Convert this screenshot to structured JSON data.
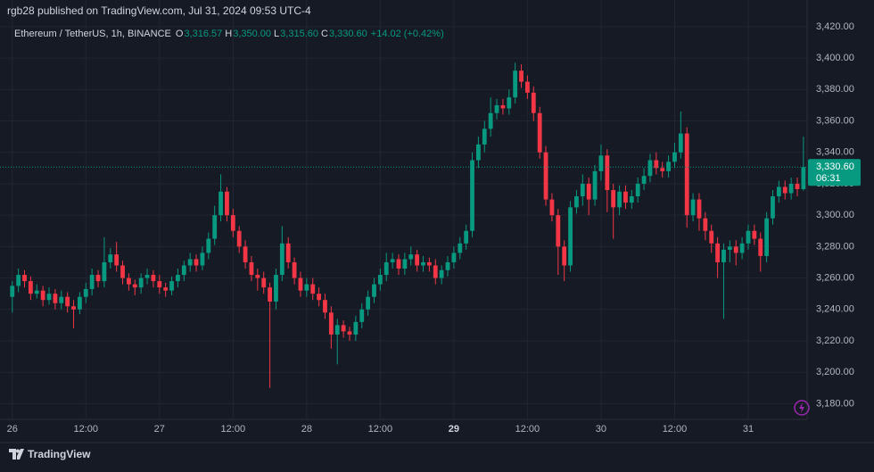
{
  "header": "rgb28 published on TradingView.com, Jul 31, 2024 09:53 UTC-4",
  "brand": "TradingView",
  "chart_data": {
    "type": "candlestick",
    "legend": {
      "symbol": "Ethereum / TetherUS, 1h, BINANCE",
      "items": [
        {
          "key": "O",
          "value": "3,316.57"
        },
        {
          "key": "H",
          "value": "3,350.00"
        },
        {
          "key": "L",
          "value": "3,315.60"
        },
        {
          "key": "C",
          "value": "3,330.60"
        }
      ],
      "change": "+14.02 (+0.42%)"
    },
    "up_color": "#089981",
    "down_color": "#f23645",
    "open": [
      3248,
      3255,
      3262,
      3258,
      3250,
      3252,
      3246,
      3250,
      3244,
      3248,
      3242,
      3240,
      3248,
      3253,
      3262,
      3258,
      3270,
      3275,
      3268,
      3260,
      3256,
      3254,
      3260,
      3262,
      3258,
      3254,
      3252,
      3258,
      3262,
      3268,
      3272,
      3268,
      3276,
      3285,
      3300,
      3315,
      3300,
      3290,
      3280,
      3270,
      3262,
      3260,
      3254,
      3245,
      3262,
      3282,
      3270,
      3260,
      3252,
      3256,
      3250,
      3246,
      3238,
      3224,
      3230,
      3226,
      3224,
      3232,
      3240,
      3248,
      3256,
      3262,
      3270,
      3272,
      3266,
      3272,
      3275,
      3268,
      3270,
      3268,
      3260,
      3265,
      3270,
      3276,
      3282,
      3290,
      3335,
      3345,
      3355,
      3365,
      3370,
      3368,
      3375,
      3392,
      3385,
      3378,
      3365,
      3340,
      3310,
      3300,
      3280,
      3268,
      3305,
      3312,
      3320,
      3310,
      3328,
      3338,
      3316,
      3305,
      3315,
      3308,
      3312,
      3320,
      3325,
      3335,
      3330,
      3328,
      3334,
      3340,
      3352,
      3300,
      3310,
      3298,
      3290,
      3282,
      3270,
      3278,
      3280,
      3276,
      3282,
      3290,
      3285,
      3274,
      3298,
      3312,
      3318,
      3314,
      3320,
      3316.57
    ],
    "high": [
      3258,
      3266,
      3265,
      3261,
      3256,
      3255,
      3254,
      3253,
      3252,
      3251,
      3246,
      3251,
      3257,
      3266,
      3265,
      3286,
      3279,
      3283,
      3271,
      3263,
      3259,
      3263,
      3266,
      3265,
      3262,
      3257,
      3261,
      3266,
      3271,
      3276,
      3275,
      3280,
      3289,
      3306,
      3326,
      3318,
      3304,
      3293,
      3284,
      3274,
      3266,
      3264,
      3257,
      3266,
      3293,
      3286,
      3273,
      3264,
      3260,
      3260,
      3254,
      3250,
      3242,
      3234,
      3233,
      3229,
      3236,
      3244,
      3252,
      3260,
      3266,
      3276,
      3276,
      3275,
      3276,
      3280,
      3278,
      3274,
      3273,
      3272,
      3268,
      3274,
      3280,
      3286,
      3294,
      3340,
      3350,
      3360,
      3375,
      3374,
      3374,
      3380,
      3397,
      3396,
      3389,
      3382,
      3369,
      3344,
      3314,
      3304,
      3284,
      3309,
      3316,
      3326,
      3324,
      3332,
      3345,
      3342,
      3320,
      3319,
      3319,
      3316,
      3324,
      3330,
      3339,
      3340,
      3334,
      3338,
      3346,
      3366,
      3356,
      3314,
      3314,
      3302,
      3294,
      3286,
      3282,
      3284,
      3284,
      3286,
      3294,
      3294,
      3289,
      3302,
      3316,
      3322,
      3322,
      3324,
      3324,
      3350
    ],
    "low": [
      3238,
      3251,
      3254,
      3246,
      3247,
      3242,
      3243,
      3240,
      3240,
      3238,
      3228,
      3237,
      3244,
      3249,
      3254,
      3254,
      3266,
      3264,
      3256,
      3252,
      3249,
      3250,
      3256,
      3254,
      3250,
      3248,
      3249,
      3254,
      3258,
      3264,
      3264,
      3265,
      3272,
      3281,
      3296,
      3296,
      3286,
      3276,
      3266,
      3258,
      3252,
      3250,
      3190,
      3240,
      3258,
      3266,
      3256,
      3248,
      3248,
      3246,
      3242,
      3234,
      3215,
      3205,
      3222,
      3220,
      3220,
      3228,
      3236,
      3244,
      3252,
      3258,
      3266,
      3262,
      3262,
      3268,
      3264,
      3264,
      3264,
      3256,
      3256,
      3261,
      3266,
      3272,
      3278,
      3286,
      3330,
      3340,
      3350,
      3361,
      3364,
      3364,
      3371,
      3381,
      3374,
      3360,
      3336,
      3306,
      3296,
      3262,
      3258,
      3264,
      3301,
      3306,
      3300,
      3306,
      3322,
      3302,
      3285,
      3300,
      3304,
      3304,
      3308,
      3316,
      3321,
      3326,
      3324,
      3324,
      3330,
      3336,
      3292,
      3296,
      3290,
      3284,
      3276,
      3260,
      3234,
      3270,
      3268,
      3272,
      3278,
      3281,
      3264,
      3270,
      3294,
      3308,
      3310,
      3310,
      3312,
      3315.6
    ],
    "close": [
      3255,
      3262,
      3258,
      3250,
      3252,
      3246,
      3250,
      3244,
      3248,
      3242,
      3240,
      3248,
      3253,
      3262,
      3258,
      3270,
      3275,
      3268,
      3260,
      3256,
      3254,
      3260,
      3262,
      3258,
      3254,
      3252,
      3258,
      3262,
      3268,
      3272,
      3268,
      3276,
      3285,
      3300,
      3315,
      3300,
      3290,
      3280,
      3270,
      3262,
      3260,
      3254,
      3245,
      3262,
      3282,
      3270,
      3260,
      3252,
      3256,
      3250,
      3246,
      3238,
      3224,
      3230,
      3226,
      3224,
      3232,
      3240,
      3248,
      3256,
      3262,
      3270,
      3272,
      3266,
      3272,
      3275,
      3268,
      3270,
      3268,
      3260,
      3265,
      3270,
      3276,
      3282,
      3290,
      3335,
      3345,
      3355,
      3365,
      3370,
      3368,
      3375,
      3392,
      3385,
      3378,
      3365,
      3340,
      3310,
      3300,
      3280,
      3268,
      3305,
      3312,
      3320,
      3310,
      3328,
      3338,
      3316,
      3305,
      3315,
      3308,
      3312,
      3320,
      3325,
      3335,
      3330,
      3328,
      3334,
      3340,
      3352,
      3300,
      3310,
      3298,
      3290,
      3282,
      3270,
      3278,
      3280,
      3276,
      3282,
      3290,
      3285,
      3274,
      3298,
      3312,
      3318,
      3314,
      3320,
      3316.57,
      3330.6
    ],
    "xlim": [
      -2,
      129.6
    ],
    "xticks": [
      {
        "value": 0,
        "label": "26"
      },
      {
        "value": 12,
        "label": "12:00"
      },
      {
        "value": 24,
        "label": "27"
      },
      {
        "value": 36,
        "label": "12:00"
      },
      {
        "value": 48,
        "label": "28"
      },
      {
        "value": 60,
        "label": "12:00"
      },
      {
        "value": 72,
        "label": "29",
        "bold": true
      },
      {
        "value": 84,
        "label": "12:00"
      },
      {
        "value": 96,
        "label": "30"
      },
      {
        "value": 108,
        "label": "12:00"
      },
      {
        "value": 120,
        "label": "31"
      }
    ],
    "ylim": [
      3170,
      3437
    ],
    "yticks": [
      {
        "value": 3180,
        "label": "3,180.00"
      },
      {
        "value": 3200,
        "label": "3,200.00"
      },
      {
        "value": 3220,
        "label": "3,220.00"
      },
      {
        "value": 3240,
        "label": "3,240.00"
      },
      {
        "value": 3260,
        "label": "3,260.00"
      },
      {
        "value": 3280,
        "label": "3,280.00"
      },
      {
        "value": 3300,
        "label": "3,300.00"
      },
      {
        "value": 3320,
        "label": "3,320.00"
      },
      {
        "value": 3340,
        "label": "3,340.00"
      },
      {
        "value": 3360,
        "label": "3,360.00"
      },
      {
        "value": 3380,
        "label": "3,380.00"
      },
      {
        "value": 3400,
        "label": "3,400.00"
      },
      {
        "value": 3420,
        "label": "3,420.00"
      }
    ],
    "grid": true,
    "price_label": {
      "value": 3330.6,
      "label": "3,330.60",
      "countdown": "06:31"
    }
  }
}
